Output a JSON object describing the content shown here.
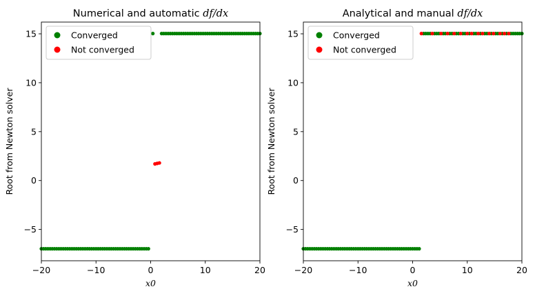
{
  "chart_data": [
    {
      "type": "scatter",
      "title_prefix": "Numerical and automatic ",
      "title_math": "df/dx",
      "xlabel": "x0",
      "ylabel": "Root from Newton solver",
      "xlim": [
        -20,
        20
      ],
      "ylim": [
        -8.2,
        16.2
      ],
      "xticks": [
        -20,
        -10,
        0,
        10,
        20
      ],
      "yticks": [
        -5,
        0,
        5,
        10,
        15
      ],
      "xtick_labels": [
        "−20",
        "−10",
        "0",
        "10",
        "20"
      ],
      "ytick_labels": [
        "−5",
        "0",
        "5",
        "10",
        "15"
      ],
      "legend": "top-left",
      "series": [
        {
          "name": "Converged",
          "color": "#008000",
          "points": [
            [
              -20.0,
              -6.97
            ],
            [
              -19.6,
              -6.97
            ],
            [
              -19.2,
              -6.97
            ],
            [
              -18.8,
              -6.97
            ],
            [
              -18.4,
              -6.97
            ],
            [
              -18.0,
              -6.97
            ],
            [
              -17.6,
              -6.97
            ],
            [
              -17.2,
              -6.97
            ],
            [
              -16.8,
              -6.97
            ],
            [
              -16.4,
              -6.97
            ],
            [
              -16.0,
              -6.97
            ],
            [
              -15.6,
              -6.97
            ],
            [
              -15.2,
              -6.97
            ],
            [
              -14.8,
              -6.97
            ],
            [
              -14.4,
              -6.97
            ],
            [
              -14.0,
              -6.97
            ],
            [
              -13.6,
              -6.97
            ],
            [
              -13.2,
              -6.97
            ],
            [
              -12.8,
              -6.97
            ],
            [
              -12.4,
              -6.97
            ],
            [
              -12.0,
              -6.97
            ],
            [
              -11.6,
              -6.97
            ],
            [
              -11.2,
              -6.97
            ],
            [
              -10.8,
              -6.97
            ],
            [
              -10.4,
              -6.97
            ],
            [
              -10.0,
              -6.97
            ],
            [
              -9.6,
              -6.97
            ],
            [
              -9.2,
              -6.97
            ],
            [
              -8.8,
              -6.97
            ],
            [
              -8.4,
              -6.97
            ],
            [
              -8.0,
              -6.97
            ],
            [
              -7.6,
              -6.97
            ],
            [
              -7.2,
              -6.97
            ],
            [
              -6.8,
              -6.97
            ],
            [
              -6.4,
              -6.97
            ],
            [
              -6.0,
              -6.97
            ],
            [
              -5.6,
              -6.97
            ],
            [
              -5.2,
              -6.97
            ],
            [
              -4.8,
              -6.97
            ],
            [
              -4.4,
              -6.97
            ],
            [
              -4.0,
              -6.97
            ],
            [
              -3.6,
              -6.97
            ],
            [
              -3.2,
              -6.97
            ],
            [
              -2.8,
              -6.97
            ],
            [
              -2.4,
              -6.97
            ],
            [
              -2.0,
              -6.97
            ],
            [
              -1.6,
              -6.97
            ],
            [
              -1.2,
              -6.97
            ],
            [
              -0.8,
              -6.97
            ],
            [
              -0.4,
              -6.97
            ],
            [
              0.4,
              15.03
            ],
            [
              2.0,
              15.03
            ],
            [
              2.4,
              15.03
            ],
            [
              2.8,
              15.03
            ],
            [
              3.2,
              15.03
            ],
            [
              3.6,
              15.03
            ],
            [
              4.0,
              15.03
            ],
            [
              4.4,
              15.03
            ],
            [
              4.8,
              15.03
            ],
            [
              5.2,
              15.03
            ],
            [
              5.6,
              15.03
            ],
            [
              6.0,
              15.03
            ],
            [
              6.4,
              15.03
            ],
            [
              6.8,
              15.03
            ],
            [
              7.2,
              15.03
            ],
            [
              7.6,
              15.03
            ],
            [
              8.0,
              15.03
            ],
            [
              8.4,
              15.03
            ],
            [
              8.8,
              15.03
            ],
            [
              9.2,
              15.03
            ],
            [
              9.6,
              15.03
            ],
            [
              10.0,
              15.03
            ],
            [
              10.4,
              15.03
            ],
            [
              10.8,
              15.03
            ],
            [
              11.2,
              15.03
            ],
            [
              11.6,
              15.03
            ],
            [
              12.0,
              15.03
            ],
            [
              12.4,
              15.03
            ],
            [
              12.8,
              15.03
            ],
            [
              13.2,
              15.03
            ],
            [
              13.6,
              15.03
            ],
            [
              14.0,
              15.03
            ],
            [
              14.4,
              15.03
            ],
            [
              14.8,
              15.03
            ],
            [
              15.2,
              15.03
            ],
            [
              15.6,
              15.03
            ],
            [
              16.0,
              15.03
            ],
            [
              16.4,
              15.03
            ],
            [
              16.8,
              15.03
            ],
            [
              17.2,
              15.03
            ],
            [
              17.6,
              15.03
            ],
            [
              18.0,
              15.03
            ],
            [
              18.4,
              15.03
            ],
            [
              18.8,
              15.03
            ],
            [
              19.2,
              15.03
            ],
            [
              19.6,
              15.03
            ],
            [
              20.0,
              15.03
            ]
          ]
        },
        {
          "name": "Not converged",
          "color": "#ff0000",
          "points": [
            [
              0.8,
              1.7
            ],
            [
              1.2,
              1.75
            ],
            [
              1.6,
              1.8
            ]
          ]
        }
      ]
    },
    {
      "type": "scatter",
      "title_prefix": "Analytical and manual ",
      "title_math": "df/dx",
      "xlabel": "x0",
      "ylabel": "Root from Newton solver",
      "xlim": [
        -20,
        20
      ],
      "ylim": [
        -8.2,
        16.2
      ],
      "xticks": [
        -20,
        -10,
        0,
        10,
        20
      ],
      "yticks": [
        -5,
        0,
        5,
        10,
        15
      ],
      "xtick_labels": [
        "−20",
        "−10",
        "0",
        "10",
        "20"
      ],
      "ytick_labels": [
        "−5",
        "0",
        "5",
        "10",
        "15"
      ],
      "legend": "top-left",
      "series": [
        {
          "name": "Converged",
          "color": "#008000",
          "points": [
            [
              -20.0,
              -6.97
            ],
            [
              -19.6,
              -6.97
            ],
            [
              -19.2,
              -6.97
            ],
            [
              -18.8,
              -6.97
            ],
            [
              -18.4,
              -6.97
            ],
            [
              -18.0,
              -6.97
            ],
            [
              -17.6,
              -6.97
            ],
            [
              -17.2,
              -6.97
            ],
            [
              -16.8,
              -6.97
            ],
            [
              -16.4,
              -6.97
            ],
            [
              -16.0,
              -6.97
            ],
            [
              -15.6,
              -6.97
            ],
            [
              -15.2,
              -6.97
            ],
            [
              -14.8,
              -6.97
            ],
            [
              -14.4,
              -6.97
            ],
            [
              -14.0,
              -6.97
            ],
            [
              -13.6,
              -6.97
            ],
            [
              -13.2,
              -6.97
            ],
            [
              -12.8,
              -6.97
            ],
            [
              -12.4,
              -6.97
            ],
            [
              -12.0,
              -6.97
            ],
            [
              -11.6,
              -6.97
            ],
            [
              -11.2,
              -6.97
            ],
            [
              -10.8,
              -6.97
            ],
            [
              -10.4,
              -6.97
            ],
            [
              -10.0,
              -6.97
            ],
            [
              -9.6,
              -6.97
            ],
            [
              -9.2,
              -6.97
            ],
            [
              -8.8,
              -6.97
            ],
            [
              -8.4,
              -6.97
            ],
            [
              -8.0,
              -6.97
            ],
            [
              -7.6,
              -6.97
            ],
            [
              -7.2,
              -6.97
            ],
            [
              -6.8,
              -6.97
            ],
            [
              -6.4,
              -6.97
            ],
            [
              -6.0,
              -6.97
            ],
            [
              -5.6,
              -6.97
            ],
            [
              -5.2,
              -6.97
            ],
            [
              -4.8,
              -6.97
            ],
            [
              -4.4,
              -6.97
            ],
            [
              -4.0,
              -6.97
            ],
            [
              -3.6,
              -6.97
            ],
            [
              -3.2,
              -6.97
            ],
            [
              -2.8,
              -6.97
            ],
            [
              -2.4,
              -6.97
            ],
            [
              -2.0,
              -6.97
            ],
            [
              -1.6,
              -6.97
            ],
            [
              -1.2,
              -6.97
            ],
            [
              -0.8,
              -6.97
            ],
            [
              -0.4,
              -6.97
            ],
            [
              0.0,
              -6.97
            ],
            [
              0.4,
              -6.97
            ],
            [
              0.8,
              -6.97
            ],
            [
              1.2,
              -6.97
            ],
            [
              2.0,
              15.03
            ],
            [
              2.4,
              15.03
            ],
            [
              2.8,
              15.03
            ],
            [
              3.2,
              15.03
            ],
            [
              4.0,
              15.03
            ],
            [
              4.4,
              15.03
            ],
            [
              4.8,
              15.03
            ],
            [
              5.6,
              15.03
            ],
            [
              6.0,
              15.03
            ],
            [
              6.8,
              15.03
            ],
            [
              7.2,
              15.03
            ],
            [
              8.0,
              15.03
            ],
            [
              8.4,
              15.03
            ],
            [
              9.2,
              15.03
            ],
            [
              9.6,
              15.03
            ],
            [
              10.4,
              15.03
            ],
            [
              11.2,
              15.03
            ],
            [
              11.6,
              15.03
            ],
            [
              12.4,
              15.03
            ],
            [
              13.2,
              15.03
            ],
            [
              13.6,
              15.03
            ],
            [
              14.4,
              15.03
            ],
            [
              15.2,
              15.03
            ],
            [
              15.6,
              15.03
            ],
            [
              16.4,
              15.03
            ],
            [
              17.2,
              15.03
            ],
            [
              18.0,
              15.03
            ],
            [
              18.4,
              15.03
            ],
            [
              18.8,
              15.03
            ],
            [
              19.2,
              15.03
            ],
            [
              19.6,
              15.03
            ],
            [
              20.0,
              15.03
            ]
          ]
        },
        {
          "name": "Not converged",
          "color": "#ff0000",
          "points": [
            [
              1.6,
              15.03
            ],
            [
              3.6,
              15.03
            ],
            [
              5.2,
              15.03
            ],
            [
              6.4,
              15.03
            ],
            [
              7.6,
              15.03
            ],
            [
              8.8,
              15.03
            ],
            [
              10.0,
              15.03
            ],
            [
              10.8,
              15.03
            ],
            [
              12.0,
              15.03
            ],
            [
              12.8,
              15.03
            ],
            [
              14.0,
              15.03
            ],
            [
              14.8,
              15.03
            ],
            [
              16.0,
              15.03
            ],
            [
              16.8,
              15.03
            ],
            [
              17.6,
              15.03
            ]
          ]
        }
      ]
    }
  ]
}
